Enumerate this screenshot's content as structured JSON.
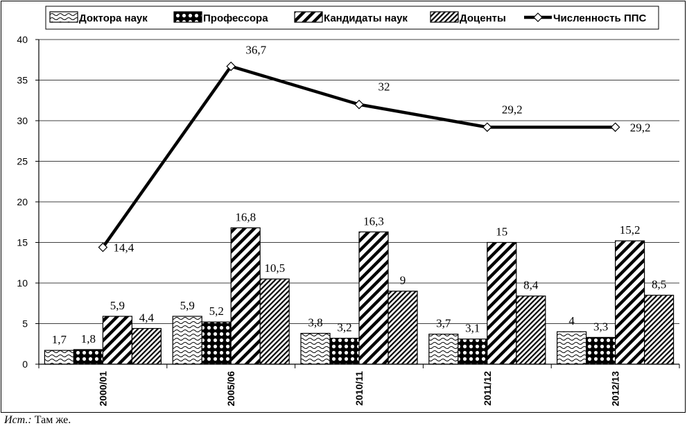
{
  "chart_data": {
    "type": "bar",
    "categories": [
      "2000/01",
      "2005/06",
      "2010/11",
      "2011/12",
      "2012/13"
    ],
    "series": [
      {
        "name": "Доктора наук",
        "type": "bar",
        "values": [
          1.7,
          5.9,
          3.8,
          3.7,
          4
        ],
        "labels": [
          "1,7",
          "5,9",
          "3,8",
          "3,7",
          "4"
        ]
      },
      {
        "name": "Профессора",
        "type": "bar",
        "values": [
          1.8,
          5.2,
          3.2,
          3.1,
          3.3
        ],
        "labels": [
          "1,8",
          "5,2",
          "3,2",
          "3,1",
          "3,3"
        ]
      },
      {
        "name": "Кандидаты наук",
        "type": "bar",
        "values": [
          5.9,
          16.8,
          16.3,
          15,
          15.2
        ],
        "labels": [
          "5,9",
          "16,8",
          "16,3",
          "15",
          "15,2"
        ]
      },
      {
        "name": "Доценты",
        "type": "bar",
        "values": [
          4.4,
          10.5,
          9,
          8.4,
          8.5
        ],
        "labels": [
          "4,4",
          "10,5",
          "9",
          "8,4",
          "8,5"
        ]
      },
      {
        "name": "Численность ППС",
        "type": "line",
        "values": [
          14.4,
          36.7,
          32,
          29.2,
          29.2
        ],
        "labels": [
          "14,4",
          "36,7",
          "32",
          "29,2",
          "29,2"
        ]
      }
    ],
    "ylim": [
      0,
      40
    ],
    "yticks": [
      "0",
      "5",
      "10",
      "15",
      "20",
      "25",
      "30",
      "35",
      "40"
    ],
    "grid": true,
    "legend": "top"
  },
  "source": {
    "label": "Ист.:",
    "text": " Там же."
  }
}
